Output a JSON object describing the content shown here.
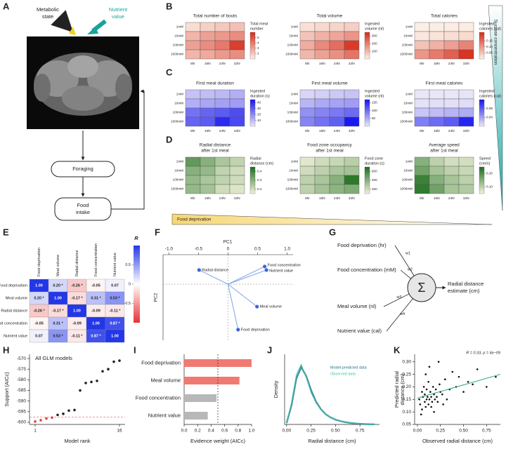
{
  "panel_labels": [
    "A",
    "B",
    "C",
    "D",
    "E",
    "F",
    "G",
    "H",
    "I",
    "J",
    "K"
  ],
  "diagram_a": {
    "metabolic_state": [
      "Metabolic",
      "state"
    ],
    "nutrient_value": [
      "Nutrient",
      "value"
    ],
    "foraging": "Foraging",
    "food_intake": [
      "Food",
      "intake"
    ]
  },
  "heatmaps": {
    "rows": [
      "1mM",
      "10mM",
      "100mM",
      "1000mM"
    ],
    "columns": [
      "8hr",
      "16hr",
      "24hr",
      "32hr"
    ],
    "side_label": "Sucrose concentration",
    "bottom_label": "Food deprivation",
    "panels": [
      {
        "title": [
          "Total number of bouts"
        ],
        "colorbar_label": [
          "Total meal",
          "number"
        ],
        "clim": [
          1,
          6
        ],
        "ticks": [
          2,
          3,
          4,
          5
        ],
        "color_low": "#fdf0e6",
        "color_high": "#d62a1a",
        "cells": [
          [
            1.5,
            1.8,
            2,
            2.2
          ],
          [
            2.5,
            3,
            3.2,
            3.5
          ],
          [
            3,
            3.5,
            4,
            5.5
          ],
          [
            2.5,
            2.8,
            3.2,
            3.5
          ]
        ]
      },
      {
        "title": [
          "Total volume"
        ],
        "colorbar_label": [
          "Ingested",
          "volume (nl)"
        ],
        "clim": [
          0,
          350
        ],
        "ticks": [
          100,
          200,
          300
        ],
        "color_low": "#fdf0e6",
        "color_high": "#d62a1a",
        "cells": [
          [
            30,
            40,
            50,
            60
          ],
          [
            80,
            110,
            130,
            160
          ],
          [
            120,
            180,
            230,
            320
          ],
          [
            100,
            140,
            170,
            220
          ]
        ]
      },
      {
        "title": [
          "Total calories"
        ],
        "colorbar_label": [
          "Ingested",
          "calories (cal)"
        ],
        "clim": [
          0,
          0.22
        ],
        "ticks": [
          {
            "value": 0.05,
            "label": "0.05"
          },
          {
            "value": 0.1,
            "label": "0.10"
          },
          {
            "value": 0.15,
            "label": "0.15"
          }
        ],
        "color_low": "#fdf0e6",
        "color_high": "#d62a1a",
        "cells": [
          [
            0.002,
            0.003,
            0.004,
            0.005
          ],
          [
            0.01,
            0.015,
            0.02,
            0.025
          ],
          [
            0.05,
            0.07,
            0.09,
            0.12
          ],
          [
            0.1,
            0.13,
            0.16,
            0.21
          ]
        ]
      },
      {
        "title": [
          "First meal duration"
        ],
        "colorbar_label": [
          "Ingested",
          "duration (s)"
        ],
        "clim": [
          0,
          45
        ],
        "ticks": [
          10,
          20,
          30,
          40
        ],
        "color_low": "#ece8f8",
        "color_high": "#1414f0",
        "cells": [
          [
            8,
            9,
            10,
            12
          ],
          [
            12,
            14,
            15,
            16
          ],
          [
            25,
            28,
            30,
            33
          ],
          [
            28,
            30,
            40,
            34
          ]
        ]
      },
      {
        "title": [
          "First meal volume"
        ],
        "colorbar_label": [
          "Ingested",
          "volume (nl)"
        ],
        "clim": [
          0,
          170
        ],
        "ticks": [
          50,
          100,
          150
        ],
        "color_low": "#ece8f8",
        "color_high": "#1414f0",
        "cells": [
          [
            15,
            20,
            25,
            30
          ],
          [
            40,
            50,
            55,
            60
          ],
          [
            70,
            80,
            90,
            100
          ],
          [
            80,
            95,
            110,
            165
          ]
        ]
      },
      {
        "title": [
          "First meal calories"
        ],
        "colorbar_label": [
          "Ingested",
          "calories (cal)"
        ],
        "clim": [
          0,
          0.12
        ],
        "ticks": [
          {
            "value": 0.04,
            "label": "0.04"
          },
          {
            "value": 0.08,
            "label": "0.08"
          }
        ],
        "color_low": "#ece8f8",
        "color_high": "#1414f0",
        "cells": [
          [
            0.001,
            0.001,
            0.001,
            0.002
          ],
          [
            0.004,
            0.005,
            0.005,
            0.006
          ],
          [
            0.02,
            0.025,
            0.03,
            0.035
          ],
          [
            0.06,
            0.07,
            0.08,
            0.11
          ]
        ]
      },
      {
        "title": [
          "Radial distance",
          "after 1st meal"
        ],
        "colorbar_label": [
          "Radial",
          "distance (cm)"
        ],
        "clim": [
          0.15,
          0.45
        ],
        "ticks": [
          0.2,
          0.3,
          0.4
        ],
        "color_low": "#f2f2dc",
        "color_high": "#1b6e1b",
        "cells": [
          [
            0.35,
            0.3,
            0.25,
            0.22
          ],
          [
            0.3,
            0.28,
            0.22,
            0.2
          ],
          [
            0.28,
            0.25,
            0.22,
            0.2
          ],
          [
            0.28,
            0.26,
            0.2,
            0.18
          ]
        ]
      },
      {
        "title": [
          "Food zone occupancy",
          "after 1st meal"
        ],
        "colorbar_label": [
          "Food zone",
          "duration (s)"
        ],
        "clim": [
          100,
          700
        ],
        "ticks": [
          200,
          400,
          600
        ],
        "color_low": "#f2f2dc",
        "color_high": "#1b6e1b",
        "cells": [
          [
            150,
            200,
            220,
            260
          ],
          [
            200,
            250,
            300,
            320
          ],
          [
            250,
            300,
            400,
            650
          ],
          [
            250,
            320,
            380,
            420
          ]
        ]
      },
      {
        "title": [
          "Average speed",
          "after 1st meal"
        ],
        "colorbar_label": [
          "Speed",
          "(cm/s)"
        ],
        "clim": [
          0.05,
          0.25
        ],
        "ticks": [
          {
            "value": 0.1,
            "label": "0.10"
          },
          {
            "value": 0.2,
            "label": "0.20"
          }
        ],
        "color_low": "#f2f2dc",
        "color_high": "#1b6e1b",
        "cells": [
          [
            0.15,
            0.1,
            0.08,
            0.08
          ],
          [
            0.17,
            0.12,
            0.1,
            0.09
          ],
          [
            0.22,
            0.15,
            0.12,
            0.1
          ],
          [
            0.23,
            0.17,
            0.12,
            0.11
          ]
        ]
      }
    ]
  },
  "corr": {
    "labels": [
      "Food deprivation",
      "Meal volume",
      "Radial distance",
      "Food concentration",
      "Nutrient value"
    ],
    "values": [
      [
        1,
        0.2,
        -0.26,
        -0.05,
        0.07
      ],
      [
        0.2,
        1,
        -0.17,
        0.31,
        0.53
      ],
      [
        -0.26,
        -0.17,
        1,
        -0.09,
        -0.11
      ],
      [
        -0.05,
        0.31,
        -0.09,
        1,
        0.87
      ],
      [
        0.07,
        0.53,
        -0.11,
        0.87,
        1
      ]
    ],
    "value_labels": [
      [
        "1.00",
        "0.20 *",
        "-0.26 *",
        "-0.05",
        "0.07"
      ],
      [
        "0.20 *",
        "1.00",
        "-0.17 *",
        "0.31 *",
        "0.53 *"
      ],
      [
        "-0.26 *",
        "-0.17 *",
        "1.00",
        "-0.09",
        "-0.11 *"
      ],
      [
        "-0.05",
        "0.31 *",
        "-0.09",
        "1.00",
        "0.87 *"
      ],
      [
        "0.07",
        "0.53 *",
        "-0.11 *",
        "0.87 *",
        "1.00"
      ]
    ],
    "colorbar_label": "R",
    "clim": [
      -1,
      1
    ],
    "ticks": [
      0.5,
      0,
      -0.5
    ],
    "color_positive": "#2337e8",
    "color_negative": "#e83030"
  },
  "pca": {
    "xlabel": "PC1",
    "ylabel": "PC2",
    "xlim": [
      -1.1,
      1.1
    ],
    "ylim": [
      -0.95,
      0.5
    ],
    "xticks": [
      {
        "value": -1,
        "label": "-1.0"
      },
      {
        "value": -0.5,
        "label": "-0.5"
      },
      0,
      {
        "value": 0.5,
        "label": "0.5"
      },
      {
        "value": 1,
        "label": "1.0"
      }
    ],
    "color": "#3a66e0",
    "vectors": [
      {
        "name": "Radial distance",
        "x": -0.49,
        "y": 0.24
      },
      {
        "name": "Food concentration",
        "x": 0.62,
        "y": 0.3
      },
      {
        "name": "Nutrient value",
        "x": 0.65,
        "y": 0.24
      },
      {
        "name": "Meal volume",
        "x": 0.49,
        "y": -0.38
      },
      {
        "name": "Food deprivation",
        "x": 0.17,
        "y": -0.77
      }
    ]
  },
  "glm": {
    "inputs": [
      {
        "name": "Food deprivation (hr)",
        "weight": "w1"
      },
      {
        "name": "Food concentration (mM)",
        "weight": "w2"
      },
      {
        "name": "Meal volume (nl)",
        "weight": "w3"
      },
      {
        "name": "Nutrient value (cal)",
        "weight": "w4"
      }
    ],
    "sum": "Σ",
    "output": [
      "Radial distance",
      "estimate (cm)"
    ]
  },
  "chart_h": {
    "type": "scatter",
    "title": "All GLM models",
    "xlabel": "Model rank",
    "ylabel": "Support (AICc)",
    "x": [
      1,
      2,
      3,
      4,
      5,
      6,
      7,
      8,
      9,
      10,
      11,
      12,
      13,
      14,
      15,
      16
    ],
    "values": [
      -599.6,
      -599,
      -598.2,
      -597.8,
      -596.5,
      -596,
      -594.5,
      -594.2,
      -585,
      -581.5,
      -581,
      -580.5,
      -576,
      -575,
      -571.5,
      -571
    ],
    "threshold": -597.5,
    "color": "#222222",
    "color_below": "#e0413a",
    "xlim": [
      0,
      17
    ],
    "xticks": [
      1,
      16
    ],
    "ylim": [
      -601,
      -568
    ],
    "yticks": [
      -570,
      -575,
      -580,
      -585,
      -590,
      -595,
      -600
    ]
  },
  "chart_i": {
    "type": "barh",
    "xlabel": "Evidence weight (AICc)",
    "categories": [
      "Food deprivation",
      "Meal volume",
      "Food concentration",
      "Nutrient value"
    ],
    "values": [
      1,
      0.82,
      0.48,
      0.35
    ],
    "colors": [
      "#f07a72",
      "#f07a72",
      "#b8b8b8",
      "#b8b8b8"
    ],
    "reference": 0.5,
    "xlim": [
      0,
      1
    ],
    "xticks": [
      {
        "value": 0,
        "label": "0.0"
      },
      {
        "value": 0.2,
        "label": "0.2"
      },
      {
        "value": 0.4,
        "label": "0.4"
      },
      {
        "value": 0.6,
        "label": "0.6"
      },
      {
        "value": 0.8,
        "label": "0.8"
      },
      {
        "value": 1,
        "label": "1.0"
      }
    ]
  },
  "chart_j": {
    "type": "line",
    "xlabel": "Radial distance (cm)",
    "ylabel": "Density",
    "x": [
      0,
      0.05,
      0.1,
      0.15,
      0.2,
      0.25,
      0.3,
      0.35,
      0.4,
      0.45,
      0.5,
      0.55,
      0.6,
      0.65,
      0.7,
      0.75,
      0.8,
      0.85,
      0.9
    ],
    "series": [
      {
        "name": "Model-predicted data",
        "color": "#1f6f8b",
        "values": [
          0.1,
          1.5,
          3.6,
          4.5,
          3.8,
          2.7,
          1.8,
          1.2,
          0.8,
          0.55,
          0.38,
          0.26,
          0.18,
          0.12,
          0.08,
          0.05,
          0.03,
          0.02,
          0.01
        ]
      },
      {
        "name": "Observed data",
        "color": "#3cc8a0",
        "values": [
          0.1,
          1.7,
          3.9,
          4.7,
          3.7,
          2.5,
          1.7,
          1.15,
          0.8,
          0.55,
          0.4,
          0.27,
          0.19,
          0.13,
          0.09,
          0.06,
          0.04,
          0.02,
          0.01
        ]
      }
    ],
    "xlim": [
      -0.02,
      0.95
    ],
    "xticks": [
      {
        "value": 0,
        "label": "0.00"
      },
      {
        "value": 0.25,
        "label": "0.25"
      },
      {
        "value": 0.5,
        "label": "0.50"
      },
      {
        "value": 0.75,
        "label": "0.75"
      }
    ],
    "ylim": [
      0,
      5.5
    ]
  },
  "chart_k": {
    "type": "scatter",
    "annotation": "R = 0.33, p = 4e−09",
    "xlabel": "Observed radial distance (cm)",
    "ylabel": [
      "Predicted radial",
      "distance (cm)"
    ],
    "x": [
      0.02,
      0.03,
      0.05,
      0.05,
      0.06,
      0.07,
      0.08,
      0.08,
      0.09,
      0.1,
      0.1,
      0.11,
      0.12,
      0.12,
      0.13,
      0.14,
      0.15,
      0.15,
      0.16,
      0.17,
      0.18,
      0.19,
      0.2,
      0.21,
      0.22,
      0.24,
      0.25,
      0.27,
      0.3,
      0.32,
      0.35,
      0.38,
      0.42,
      0.45,
      0.5,
      0.55,
      0.6,
      0.65,
      0.75,
      0.85,
      0.04,
      0.09,
      0.13,
      0.18,
      0.23,
      0.28
    ],
    "values": [
      0.15,
      0.13,
      0.18,
      0.11,
      0.16,
      0.2,
      0.14,
      0.17,
      0.12,
      0.15,
      0.19,
      0.16,
      0.13,
      0.22,
      0.15,
      0.18,
      0.12,
      0.16,
      0.14,
      0.2,
      0.17,
      0.15,
      0.19,
      0.16,
      0.14,
      0.21,
      0.18,
      0.17,
      0.23,
      0.15,
      0.19,
      0.26,
      0.2,
      0.24,
      0.18,
      0.22,
      0.21,
      0.27,
      0.2,
      0.24,
      0.09,
      0.25,
      0.28,
      0.1,
      0.3,
      0.13
    ],
    "color": "#111111",
    "fit_x": [
      0,
      0.9
    ],
    "fit_y": [
      0.155,
      0.25
    ],
    "fit_color": "#2aa67a",
    "xlim": [
      -0.03,
      0.9
    ],
    "xticks": [
      {
        "value": 0,
        "label": "0.00"
      },
      {
        "value": 0.25,
        "label": "0.25"
      },
      {
        "value": 0.5,
        "label": "0.50"
      },
      {
        "value": 0.75,
        "label": "0.75"
      }
    ],
    "ylim": [
      0.05,
      0.33
    ],
    "yticks": [
      {
        "value": 0.05,
        "label": "0.05"
      },
      {
        "value": 0.1,
        "label": "0.10"
      },
      {
        "value": 0.15,
        "label": "0.15"
      },
      {
        "value": 0.2,
        "label": "0.20"
      },
      {
        "value": 0.25,
        "label": "0.25"
      },
      {
        "value": 0.3,
        "label": "0.30"
      }
    ]
  }
}
